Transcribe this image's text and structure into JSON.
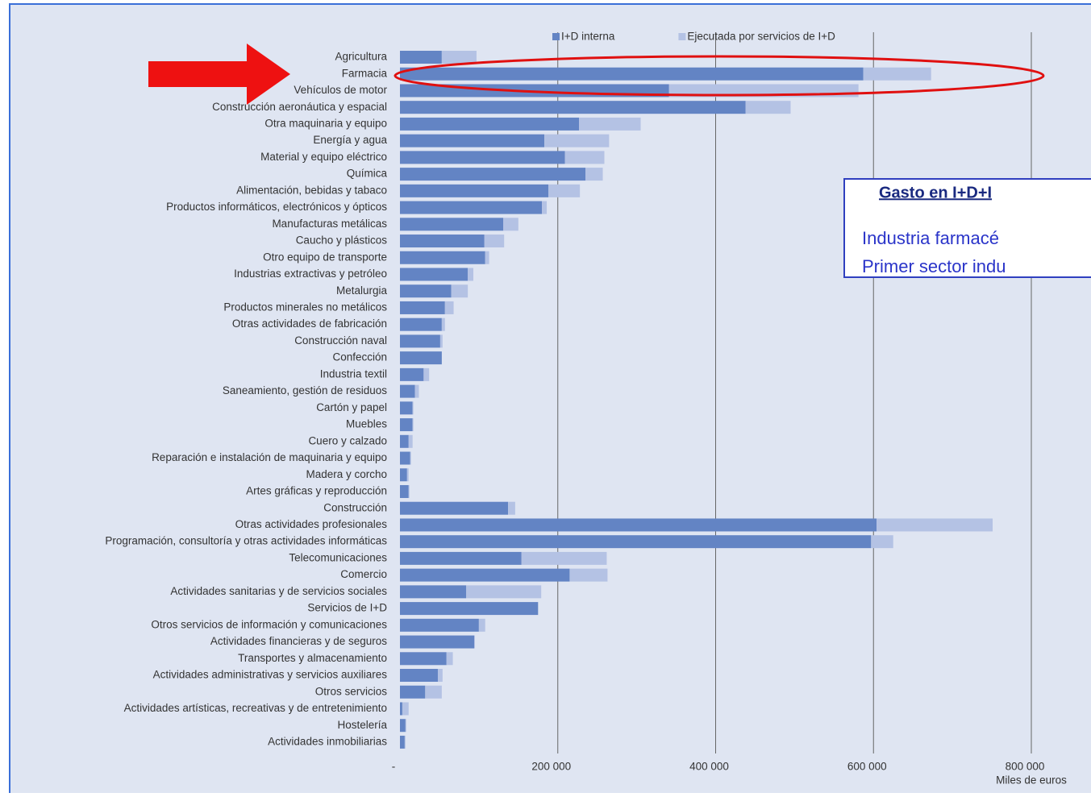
{
  "chart_data": {
    "type": "stacked_barh",
    "categories": [
      "Agricultura",
      "Farmacia",
      "Vehículos de motor",
      "Construcción aeronáutica y espacial",
      "Otra maquinaria y equipo",
      "Energía y agua",
      "Material y equipo eléctrico",
      "Química",
      "Alimentación, bebidas y tabaco",
      "Productos informáticos, electrónicos y ópticos",
      "Manufacturas metálicas",
      "Caucho y plásticos",
      "Otro equipo de transporte",
      "Industrias extractivas y petróleo",
      "Metalurgia",
      "Productos minerales no metálicos",
      "Otras actividades de fabricación",
      "Construcción naval",
      "Confección",
      "Industria textil",
      "Saneamiento, gestión de residuos",
      "Cartón y papel",
      "Muebles",
      "Cuero y calzado",
      "Reparación e instalación de maquinaria y equipo",
      "Madera y corcho",
      "Artes gráficas y reproducción",
      "Construcción",
      "Otras actividades profesionales",
      "Programación, consultoría y otras actividades informáticas",
      "Telecomunicaciones",
      "Comercio",
      "Actividades sanitarias y de servicios sociales",
      "Servicios de I+D",
      "Otros servicios de información y comunicaciones",
      "Actividades financieras y de seguros",
      "Transportes y almacenamiento",
      "Actividades administrativas y servicios auxiliares",
      "Otros servicios",
      "Actividades artísticas, recreativas y de entretenimiento",
      "Hostelería",
      "Actividades inmobiliarias"
    ],
    "series": [
      {
        "name": "I+D interna",
        "color": "#6384c4",
        "values": [
          53000,
          587000,
          341000,
          438000,
          227000,
          183000,
          209000,
          235000,
          188000,
          180000,
          131000,
          107000,
          108000,
          86000,
          65000,
          57000,
          53000,
          51000,
          53000,
          30000,
          19000,
          16000,
          16000,
          11000,
          13000,
          9000,
          11000,
          137000,
          604000,
          597000,
          154000,
          215000,
          84000,
          175000,
          100000,
          94000,
          59000,
          48000,
          32000,
          3000,
          7000,
          6000
        ]
      },
      {
        "name": "Ejecutada por servicios de I+D",
        "color": "#b4c2e4",
        "values": [
          44000,
          86000,
          240000,
          57000,
          78000,
          82000,
          50000,
          22000,
          40000,
          6000,
          19000,
          25000,
          5000,
          7000,
          21000,
          11000,
          4000,
          3000,
          0,
          7000,
          5000,
          1000,
          1000,
          5000,
          1000,
          2000,
          1000,
          9000,
          147000,
          28000,
          108000,
          48000,
          95000,
          0,
          8000,
          1000,
          8000,
          6000,
          21000,
          8000,
          1000,
          1000
        ]
      }
    ],
    "xlim": [
      0,
      800000
    ],
    "xticks": [
      {
        "value": 0,
        "label": "-"
      },
      {
        "value": 200000,
        "label": "200 000"
      },
      {
        "value": 400000,
        "label": "400 000"
      },
      {
        "value": 600000,
        "label": "600 000"
      },
      {
        "value": 800000,
        "label": "800 000"
      }
    ],
    "xlabel": "Miles de euros",
    "grid": true,
    "legend": "top",
    "annotation": {
      "title": "Gasto en I+D+I",
      "lines": [
        "Industria farmacé",
        "Primer sector indu"
      ]
    }
  }
}
